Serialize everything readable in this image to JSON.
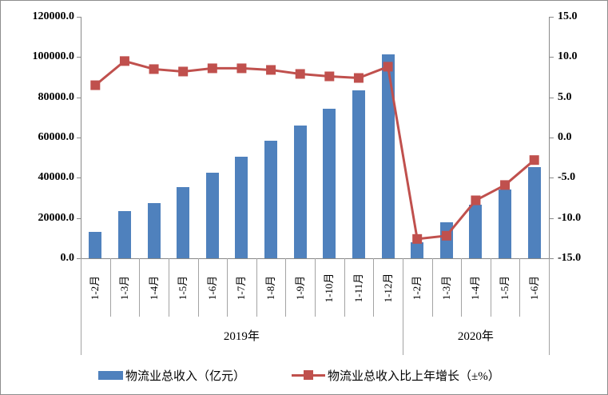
{
  "chart_data": {
    "type": "bar+line combo",
    "title": "",
    "categories": [
      "1-2月",
      "1-3月",
      "1-4月",
      "1-5月",
      "1-6月",
      "1-7月",
      "1-8月",
      "1-9月",
      "1-10月",
      "1-11月",
      "1-12月",
      "1-2月",
      "1-3月",
      "1-4月",
      "1-5月",
      "1-6月"
    ],
    "groups": [
      {
        "label": "2019年",
        "span": 11
      },
      {
        "label": "2020年",
        "span": 5
      }
    ],
    "series": [
      {
        "name": "物流业总收入（亿元）",
        "type": "bar",
        "axis": "left",
        "color": "#4F81BD",
        "values": [
          13000,
          23400,
          27400,
          35300,
          42500,
          50400,
          58300,
          65900,
          74300,
          83500,
          101400,
          8000,
          18000,
          26500,
          34200,
          45300
        ]
      },
      {
        "name": "物流业总收入比上年增长（±%）",
        "type": "line",
        "axis": "right",
        "color": "#C0504D",
        "values": [
          6.5,
          9.5,
          8.5,
          8.2,
          8.6,
          8.6,
          8.4,
          7.9,
          7.6,
          7.4,
          8.8,
          -12.6,
          -12.2,
          -7.8,
          -5.9,
          -2.8
        ]
      }
    ],
    "left_axis": {
      "min": 0,
      "max": 120000,
      "step": 20000,
      "tick_labels": [
        "120000.0",
        "100000.0",
        "80000.0",
        "60000.0",
        "40000.0",
        "20000.0",
        "0.0"
      ]
    },
    "right_axis": {
      "min": -15,
      "max": 15,
      "step": 5,
      "tick_labels": [
        "15.0",
        "10.0",
        "5.0",
        "0.0",
        "-5.0",
        "-10.0",
        "-15.0"
      ]
    },
    "grid": false,
    "legend_position": "bottom"
  },
  "colors": {
    "bar": "#4F81BD",
    "line": "#C0504D",
    "axis": "#898989",
    "separator": "#A3A3A3",
    "text": "#000000"
  }
}
